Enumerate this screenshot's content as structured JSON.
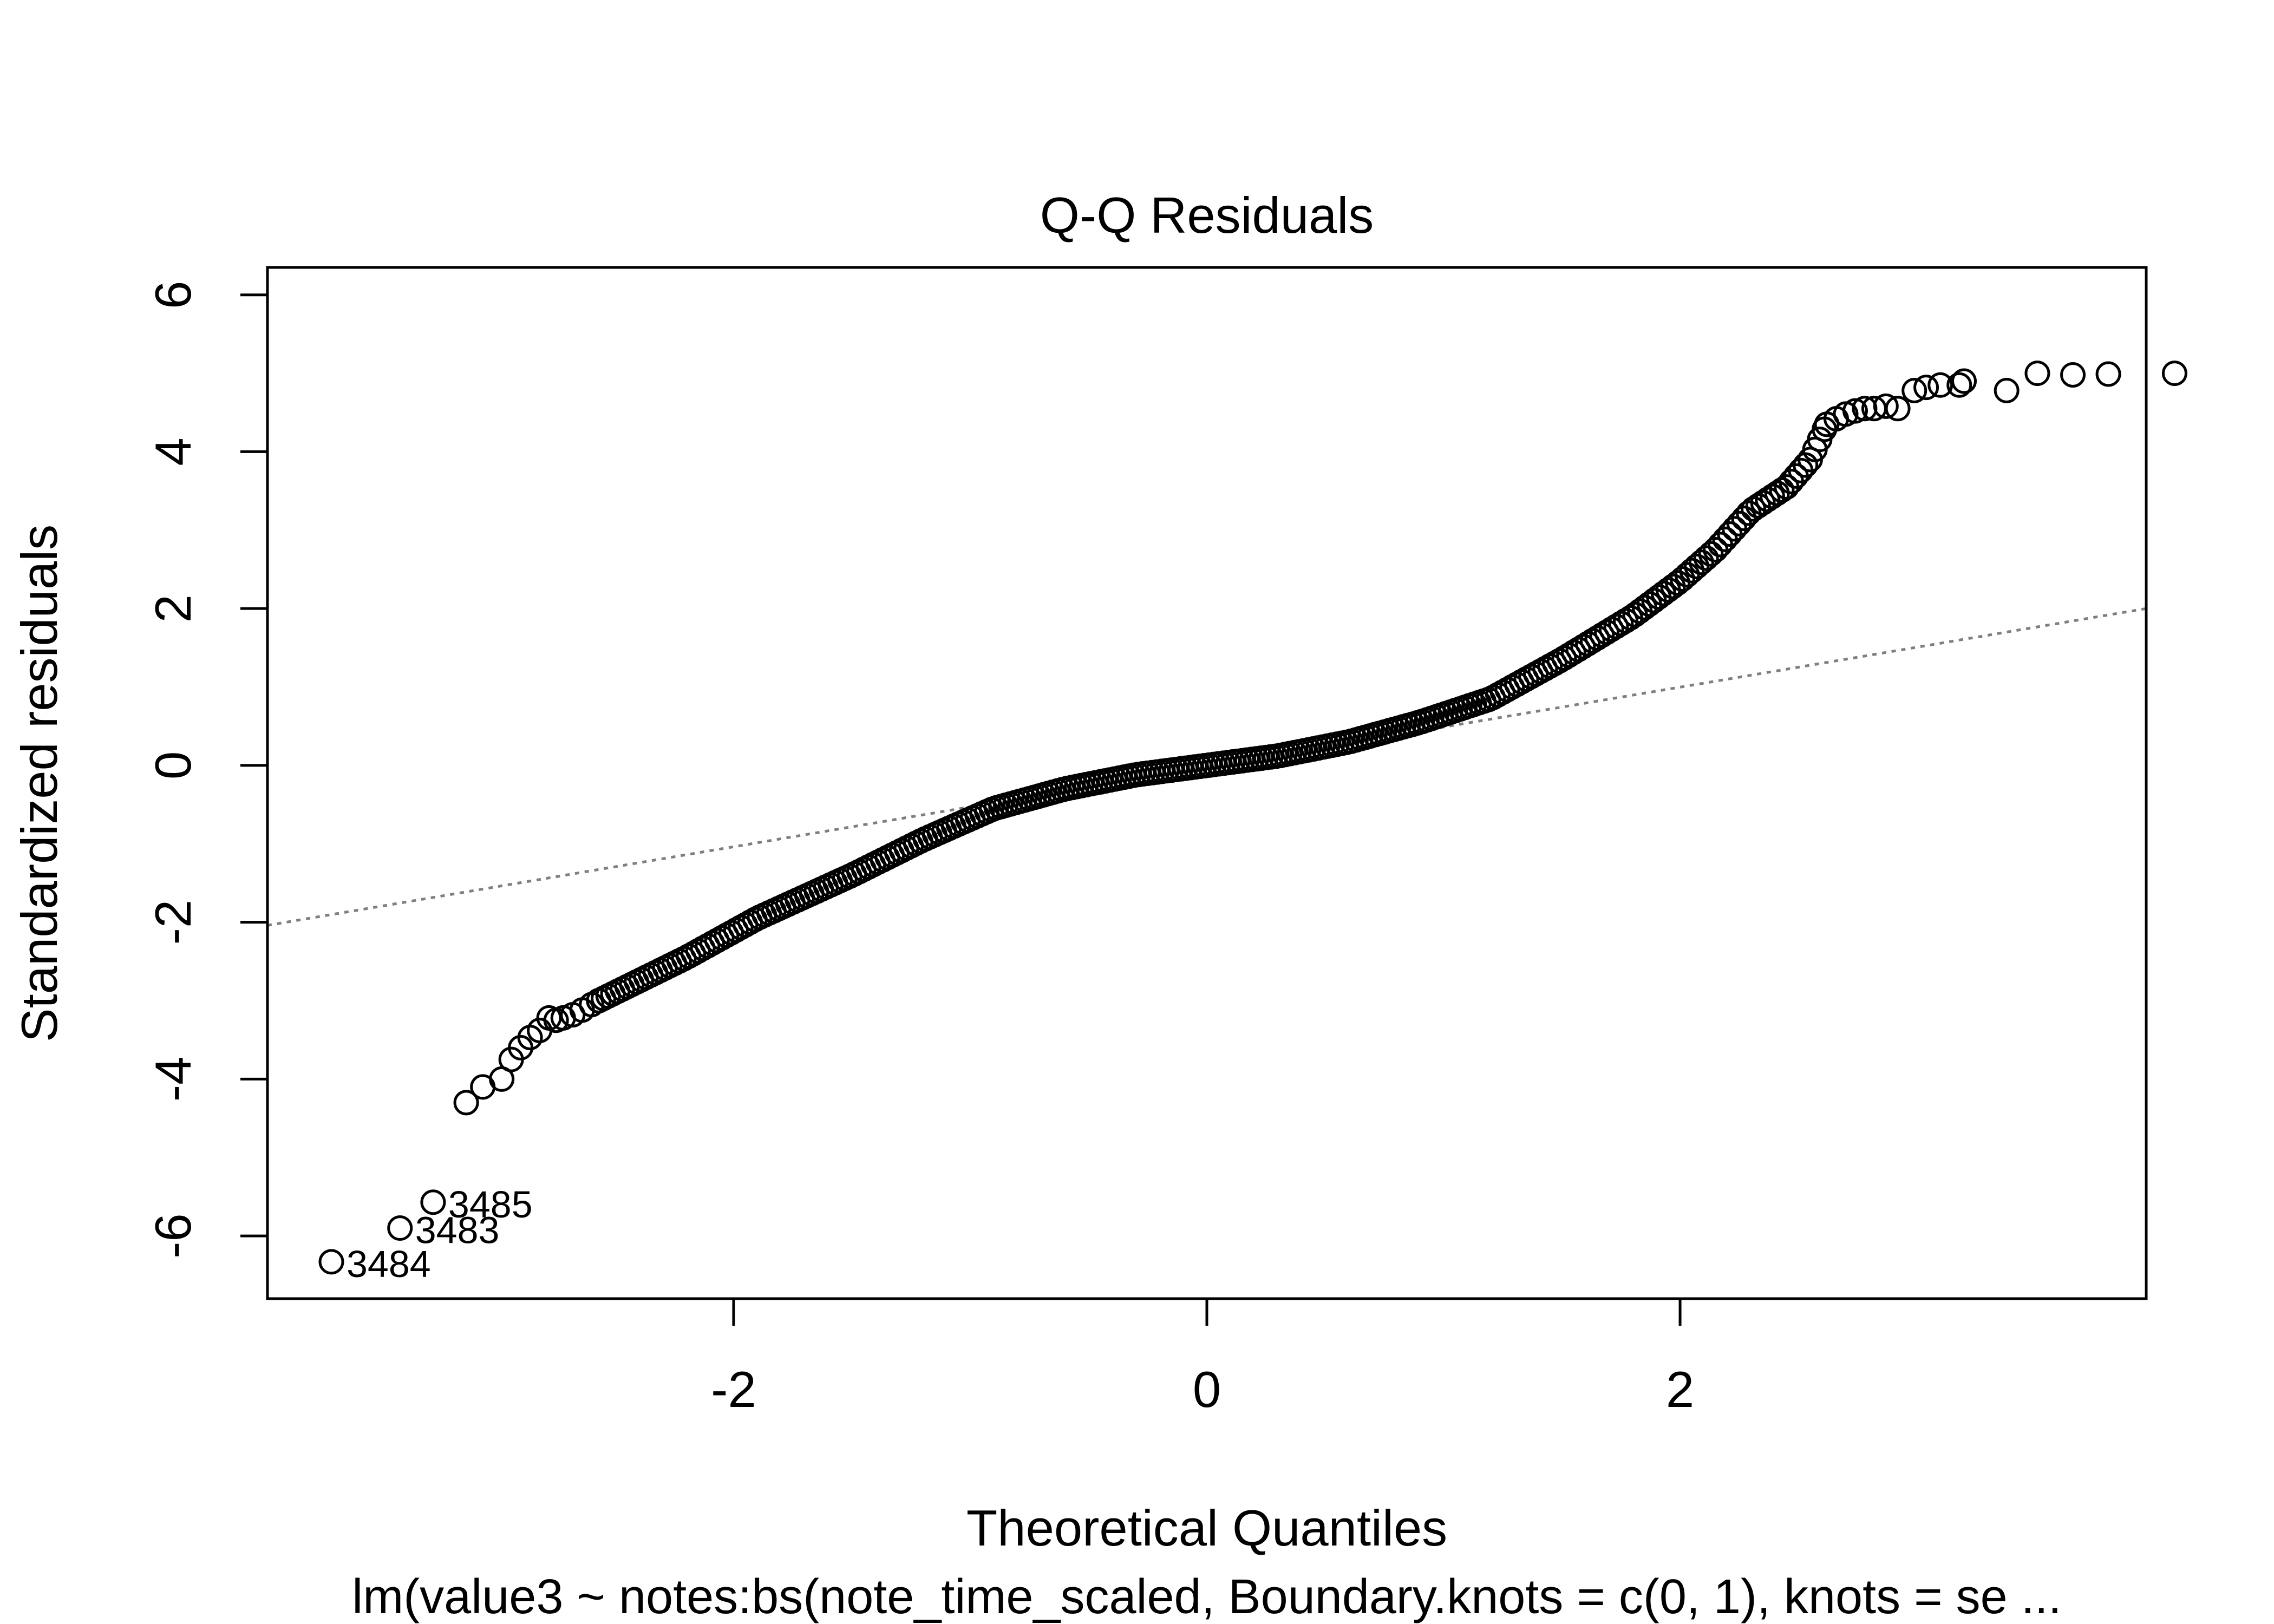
{
  "chart_data": {
    "type": "scatter",
    "title": "Q-Q Residuals",
    "xlabel": "Theoretical Quantiles",
    "ylabel": "Standardized residuals",
    "subtitle": "lm(value3 ~ notes:bs(note_time_scaled, Boundary.knots = c(0, 1), knots = se ...",
    "xlim": [
      -3.97,
      3.97
    ],
    "ylim": [
      -6.8,
      6.35
    ],
    "x_ticks": [
      -2,
      0,
      2
    ],
    "x_tick_labels": [
      "-2",
      "0",
      "2"
    ],
    "y_ticks": [
      -6,
      -4,
      -2,
      0,
      2,
      4,
      6
    ],
    "y_tick_labels": [
      "-6",
      "-4",
      "-2",
      "0",
      "2",
      "4",
      "6"
    ],
    "grid": false,
    "reference_line": {
      "x": [
        -3.97,
        3.97
      ],
      "y": [
        -2.04,
        2.0
      ],
      "style": "dotted",
      "color": "#7f7f7f"
    },
    "labeled_points": [
      {
        "label": "3484",
        "x": -3.7,
        "y": -6.33
      },
      {
        "label": "3483",
        "x": -3.41,
        "y": -5.9
      },
      {
        "label": "3485",
        "x": -3.27,
        "y": -5.57
      }
    ],
    "points": [
      [
        -3.13,
        -4.3
      ],
      [
        -3.06,
        -4.1
      ],
      [
        -2.98,
        -4.0
      ],
      [
        -2.94,
        -3.75
      ],
      [
        -2.9,
        -3.6
      ],
      [
        -2.86,
        -3.47
      ],
      [
        -2.82,
        -3.38
      ],
      [
        -2.78,
        -3.22
      ],
      [
        -2.75,
        -3.25
      ],
      [
        -2.72,
        -3.22
      ],
      [
        -2.68,
        -3.18
      ],
      [
        -2.64,
        -3.12
      ],
      [
        -2.6,
        -3.05
      ],
      [
        -2.57,
        -3.0
      ],
      [
        3.38,
        4.78
      ],
      [
        3.2,
        4.9
      ],
      [
        3.18,
        4.85
      ],
      [
        3.1,
        4.85
      ],
      [
        3.04,
        4.82
      ],
      [
        2.99,
        4.78
      ],
      [
        2.92,
        4.55
      ],
      [
        2.87,
        4.58
      ],
      [
        2.82,
        4.55
      ],
      [
        2.78,
        4.55
      ],
      [
        2.74,
        4.52
      ],
      [
        2.7,
        4.48
      ],
      [
        2.66,
        4.42
      ],
      [
        2.62,
        4.35
      ],
      [
        3.51,
        5.0
      ],
      [
        3.81,
        4.99
      ],
      [
        4.09,
        5.0
      ],
      [
        3.66,
        4.98
      ]
    ],
    "point_style": "open-circle",
    "point_color": "#000000"
  }
}
